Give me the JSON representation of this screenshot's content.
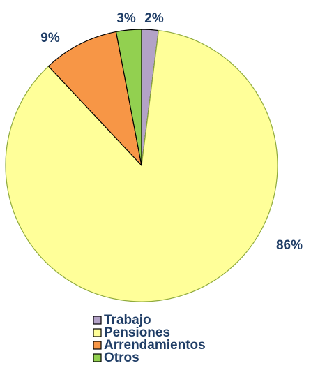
{
  "chart_data": {
    "type": "pie",
    "categories": [
      "Trabajo",
      "Pensiones",
      "Arrendamientos",
      "Otros"
    ],
    "values": [
      2,
      86,
      9,
      3
    ],
    "value_labels": [
      "2%",
      "86%",
      "9%",
      "3%"
    ],
    "colors": [
      "#b3a2c7",
      "#ffff99",
      "#f79646",
      "#92d050"
    ],
    "legend": "bottom"
  }
}
